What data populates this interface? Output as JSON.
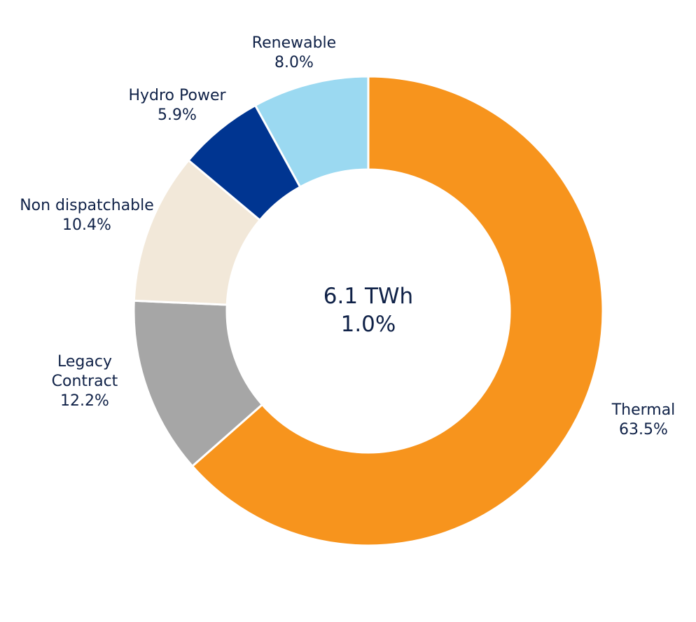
{
  "chart_data": {
    "type": "pie",
    "variant": "donut",
    "center_labels": [
      "6.1 TWh",
      "1.0%"
    ],
    "slices": [
      {
        "name": "Thermal",
        "label_lines": [
          "Thermal"
        ],
        "value": 63.5,
        "value_label": "63.5%",
        "color": "#f7941d"
      },
      {
        "name": "Legacy Contract",
        "label_lines": [
          "Legacy",
          "Contract"
        ],
        "value": 12.2,
        "value_label": "12.2%",
        "color": "#a6a6a6"
      },
      {
        "name": "Non dispatchable",
        "label_lines": [
          "Non dispatchable"
        ],
        "value": 10.4,
        "value_label": "10.4%",
        "color": "#f2e8d9"
      },
      {
        "name": "Hydro Power",
        "label_lines": [
          "Hydro Power"
        ],
        "value": 5.9,
        "value_label": "5.9%",
        "color": "#003591"
      },
      {
        "name": "Renewable",
        "label_lines": [
          "Renewable"
        ],
        "value": 8.0,
        "value_label": "8.0%",
        "color": "#9bd9f1"
      }
    ]
  }
}
